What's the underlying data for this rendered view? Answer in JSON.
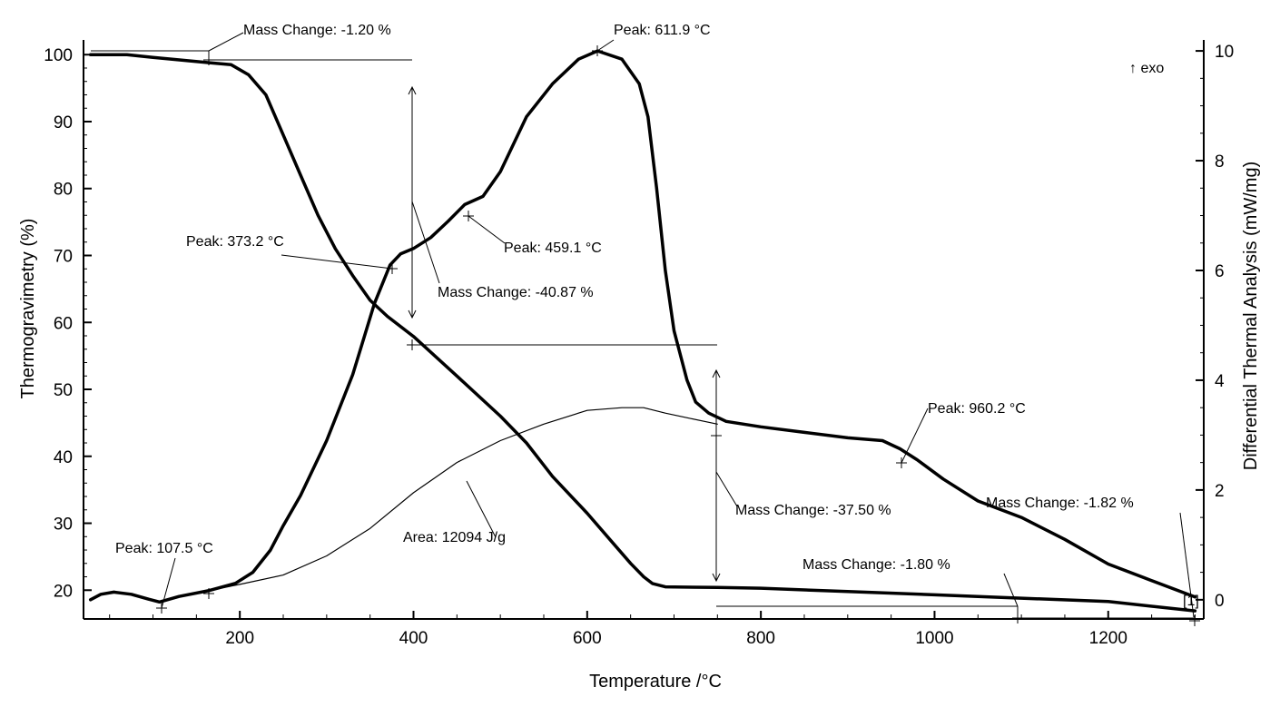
{
  "chart_data": {
    "type": "line",
    "xlabel": "Temperature /°C",
    "ylabel_left": "Thermogravimetry (%)",
    "ylabel_right": "Differential Thermal Analysis (mW/mg)",
    "exo_label": "↑ exo",
    "xlim": [
      20,
      1310
    ],
    "ylim_left": [
      15.7,
      102.2
    ],
    "ylim_right": [
      -0.35,
      10.2
    ],
    "x_ticks": [
      200,
      400,
      600,
      800,
      1000,
      1200
    ],
    "x_tick_labels": [
      "200",
      "400",
      "600",
      "800",
      "1000",
      "1200"
    ],
    "y_left_ticks": [
      20,
      30,
      40,
      50,
      60,
      70,
      80,
      90,
      100
    ],
    "y_left_tick_labels": [
      "20",
      "30",
      "40",
      "50",
      "60",
      "70",
      "80",
      "90",
      "100"
    ],
    "y_right_ticks": [
      0,
      2,
      4,
      6,
      8,
      10
    ],
    "y_right_tick_labels": [
      "0",
      "2",
      "4",
      "6",
      "8",
      "10"
    ],
    "series": [
      {
        "name": "TG",
        "axis": "left",
        "points": [
          [
            28,
            100
          ],
          [
            70,
            100
          ],
          [
            100,
            99.6
          ],
          [
            140,
            99.1
          ],
          [
            165,
            98.8
          ],
          [
            190,
            98.5
          ],
          [
            210,
            97
          ],
          [
            230,
            94
          ],
          [
            250,
            88
          ],
          [
            270,
            82
          ],
          [
            290,
            76
          ],
          [
            310,
            71
          ],
          [
            330,
            67
          ],
          [
            350,
            63.3
          ],
          [
            370,
            60.9
          ],
          [
            400,
            57.9
          ],
          [
            450,
            52
          ],
          [
            500,
            46
          ],
          [
            530,
            42
          ],
          [
            560,
            37
          ],
          [
            600,
            31.5
          ],
          [
            630,
            27
          ],
          [
            650,
            24
          ],
          [
            665,
            22
          ],
          [
            675,
            21
          ],
          [
            690,
            20.5
          ],
          [
            750,
            20.4
          ],
          [
            800,
            20.3
          ],
          [
            900,
            19.8
          ],
          [
            1000,
            19.3
          ],
          [
            1100,
            18.8
          ],
          [
            1200,
            18.3
          ],
          [
            1300,
            16.9
          ]
        ]
      },
      {
        "name": "DTA",
        "axis": "right",
        "points": [
          [
            28,
            0
          ],
          [
            40,
            0.1
          ],
          [
            55,
            0.14
          ],
          [
            75,
            0.1
          ],
          [
            95,
            0.01
          ],
          [
            107.5,
            -0.04
          ],
          [
            130,
            0.06
          ],
          [
            165,
            0.17
          ],
          [
            195,
            0.3
          ],
          [
            215,
            0.5
          ],
          [
            235,
            0.9
          ],
          [
            250,
            1.35
          ],
          [
            270,
            1.9
          ],
          [
            300,
            2.9
          ],
          [
            330,
            4.1
          ],
          [
            355,
            5.4
          ],
          [
            373,
            6.1
          ],
          [
            385,
            6.3
          ],
          [
            400,
            6.4
          ],
          [
            420,
            6.6
          ],
          [
            440,
            6.9
          ],
          [
            459,
            7.2
          ],
          [
            480,
            7.35
          ],
          [
            500,
            7.8
          ],
          [
            530,
            8.8
          ],
          [
            560,
            9.4
          ],
          [
            590,
            9.85
          ],
          [
            611.9,
            10
          ],
          [
            640,
            9.85
          ],
          [
            660,
            9.4
          ],
          [
            670,
            8.8
          ],
          [
            680,
            7.5
          ],
          [
            690,
            6
          ],
          [
            700,
            4.9
          ],
          [
            715,
            4
          ],
          [
            725,
            3.6
          ],
          [
            740,
            3.4
          ],
          [
            760,
            3.25
          ],
          [
            800,
            3.15
          ],
          [
            850,
            3.05
          ],
          [
            900,
            2.95
          ],
          [
            940,
            2.9
          ],
          [
            960.2,
            2.75
          ],
          [
            980,
            2.55
          ],
          [
            1010,
            2.2
          ],
          [
            1050,
            1.8
          ],
          [
            1100,
            1.5
          ],
          [
            1150,
            1.1
          ],
          [
            1200,
            0.65
          ],
          [
            1250,
            0.35
          ],
          [
            1300,
            0.05
          ]
        ]
      },
      {
        "name": "DTA baseline",
        "axis": "right",
        "points": [
          [
            165,
            0.17
          ],
          [
            200,
            0.28
          ],
          [
            250,
            0.45
          ],
          [
            300,
            0.8
          ],
          [
            350,
            1.3
          ],
          [
            400,
            1.95
          ],
          [
            450,
            2.5
          ],
          [
            500,
            2.9
          ],
          [
            550,
            3.2
          ],
          [
            600,
            3.45
          ],
          [
            640,
            3.5
          ],
          [
            665,
            3.5
          ],
          [
            690,
            3.4
          ],
          [
            720,
            3.3
          ],
          [
            750,
            3.2
          ]
        ]
      }
    ],
    "annotations": [
      {
        "text": "Mass Change: -1.20 %",
        "kind": "mass_change"
      },
      {
        "text": "Peak: 611.9 °C",
        "kind": "peak"
      },
      {
        "text": "Peak: 459.1 °C",
        "kind": "peak"
      },
      {
        "text": "Peak: 373.2 °C",
        "kind": "peak"
      },
      {
        "text": "Mass Change: -40.87 %",
        "kind": "mass_change"
      },
      {
        "text": "Peak: 960.2 °C",
        "kind": "peak"
      },
      {
        "text": "Mass Change: -37.50 %",
        "kind": "mass_change"
      },
      {
        "text": "Mass Change: -1.82 %",
        "kind": "mass_change"
      },
      {
        "text": "Mass Change: -1.80 %",
        "kind": "mass_change"
      },
      {
        "text": "Peak: 107.5 °C",
        "kind": "peak"
      },
      {
        "text": "Area: 12094 J/g",
        "kind": "area"
      },
      {
        "text": "[1]",
        "kind": "curve_label"
      }
    ]
  }
}
